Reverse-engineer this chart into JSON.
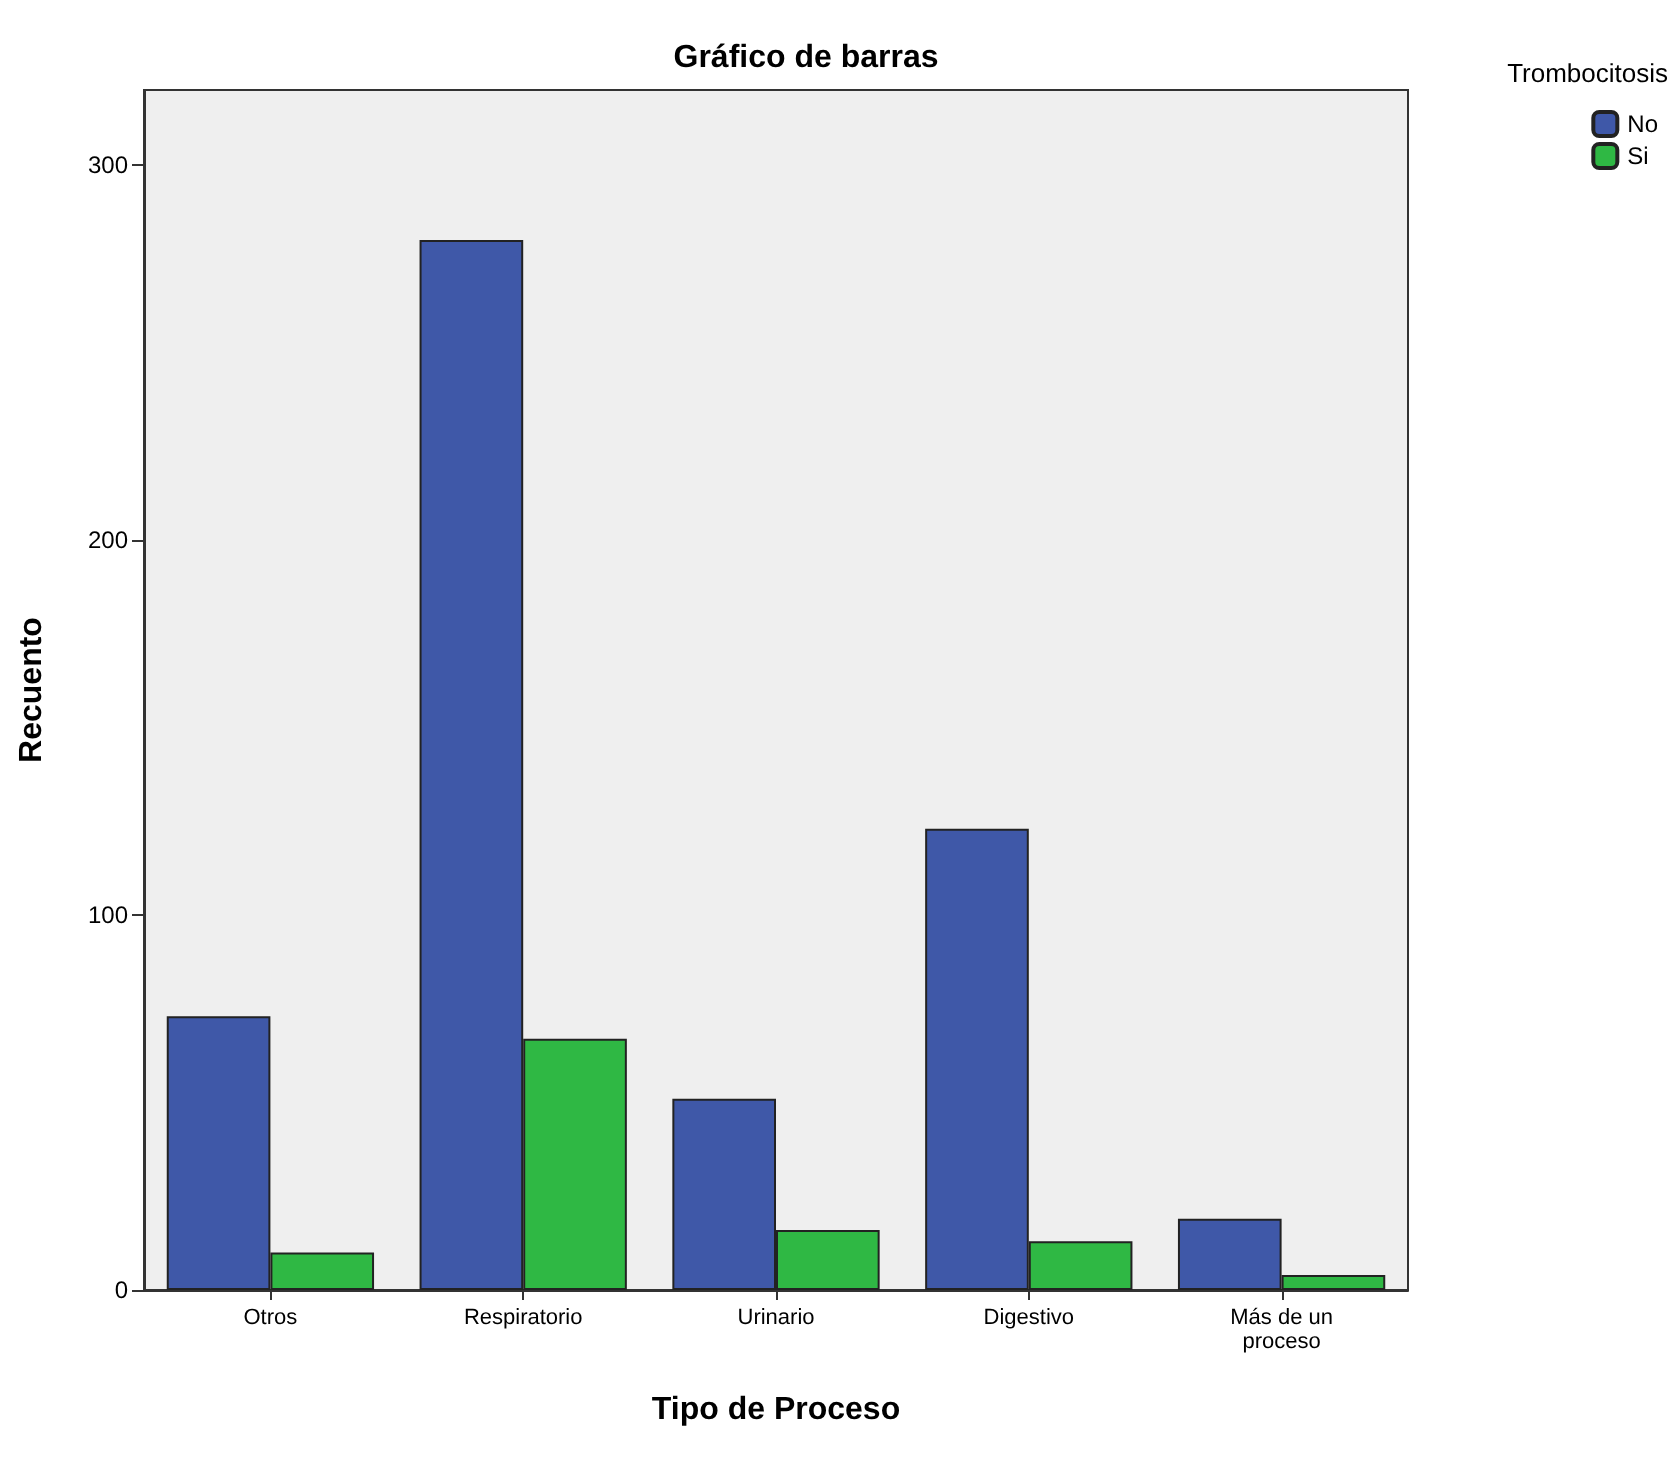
{
  "chart_data": {
    "type": "bar",
    "title": "Gráfico de barras",
    "xlabel": "Tipo de Proceso",
    "ylabel": "Recuento",
    "legend_title": "Trombocitosis",
    "categories": [
      "Otros",
      "Respiratorio",
      "Urinario",
      "Digestivo",
      "Más de un\nproceso"
    ],
    "series": [
      {
        "name": "No",
        "color": "#3f58a8",
        "values": [
          73,
          280,
          51,
          123,
          19
        ]
      },
      {
        "name": "Si",
        "color": "#2fb844",
        "values": [
          10,
          67,
          16,
          13,
          4
        ]
      }
    ],
    "ylim": [
      0,
      320
    ],
    "yticks": [
      0,
      100,
      200,
      300
    ],
    "grid": false,
    "legend": "top right"
  }
}
